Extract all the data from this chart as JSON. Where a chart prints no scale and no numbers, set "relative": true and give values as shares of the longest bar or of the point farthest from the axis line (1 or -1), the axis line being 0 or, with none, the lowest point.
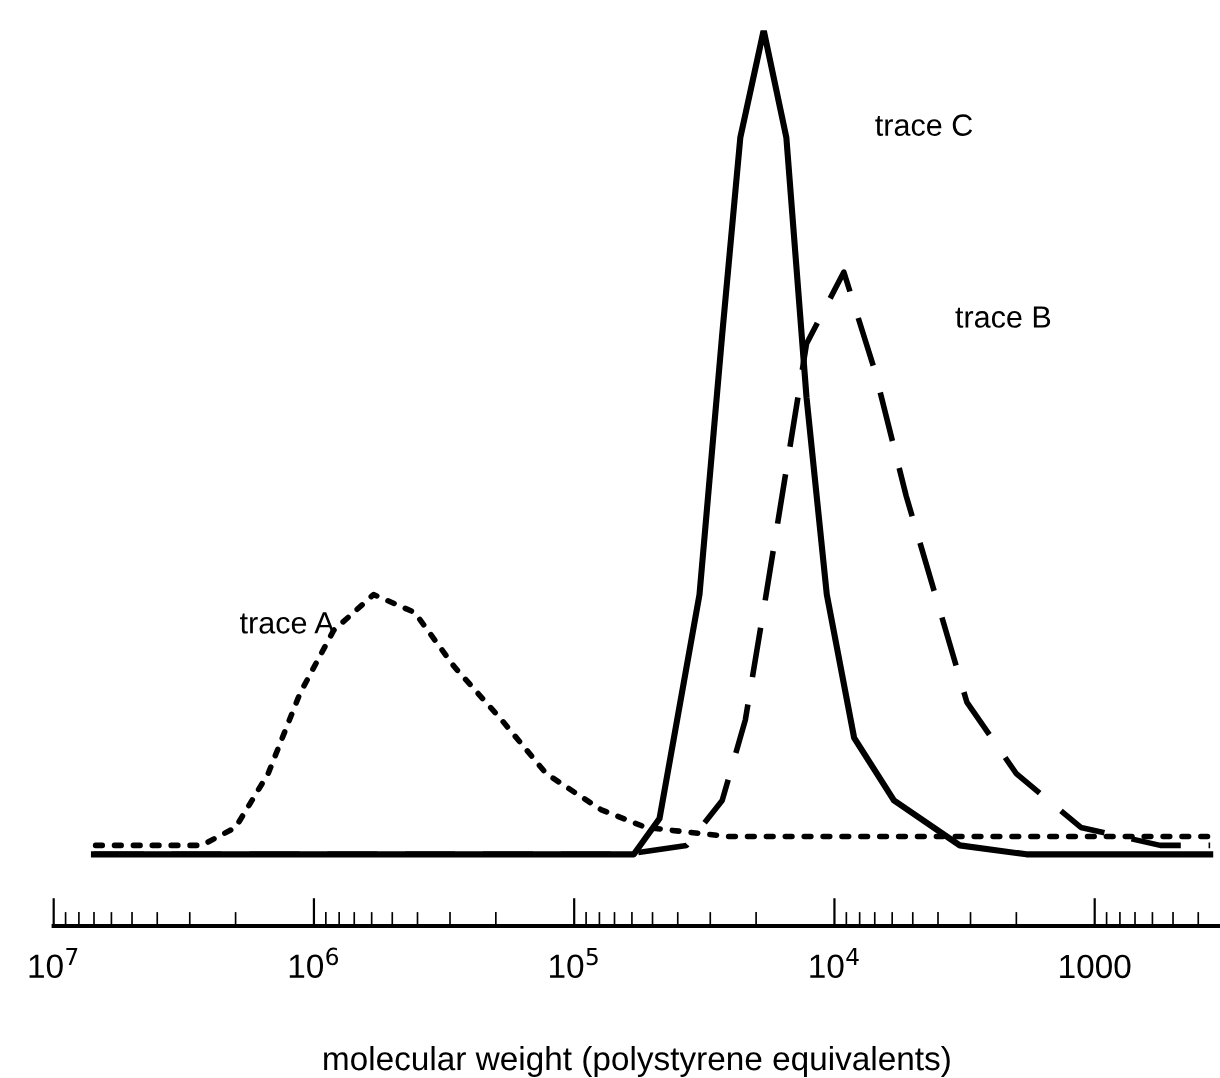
{
  "chart_data": {
    "type": "line",
    "xlabel": "molecular weight (polystyrene equivalents)",
    "log": "x",
    "relative": true,
    "xlim": [
      10000000,
      330
    ],
    "xticks": [
      {
        "value": 10000000,
        "label": "10$^{7}$"
      },
      {
        "value": 1000000,
        "label": "10$^{6}$"
      },
      {
        "value": 100000,
        "label": "10$^{5}$"
      },
      {
        "value": 10000,
        "label": "10$^{4}$"
      },
      1000
    ],
    "tick_labels": "x",
    "grid": false,
    "legend": false,
    "marker": "none",
    "series": [
      {
        "name": "trace A",
        "color": "#000000",
        "line_style": "dotted",
        "x": [
          6900000,
          2700000,
          2000000,
          1500000,
          1130000,
          840000,
          590000,
          410000,
          290000,
          190000,
          128000,
          79000,
          53000,
          26000,
          10000,
          1000,
          360
        ],
        "values": [
          0.09,
          0.09,
          0.11,
          0.17,
          0.26,
          0.33,
          0.37,
          0.35,
          0.29,
          0.23,
          0.17,
          0.13,
          0.11,
          0.1,
          0.1,
          0.1,
          0.1
        ]
      },
      {
        "name": "trace B",
        "color": "#000000",
        "line_style": "dashed",
        "x": [
          7000000,
          63000,
          37000,
          27000,
          22000,
          18300,
          15300,
          12800,
          9200,
          7000,
          5300,
          4100,
          3100,
          2000,
          1130,
          560,
          360
        ],
        "values": [
          0.08,
          0.08,
          0.09,
          0.14,
          0.23,
          0.37,
          0.51,
          0.65,
          0.73,
          0.62,
          0.48,
          0.37,
          0.25,
          0.17,
          0.11,
          0.09,
          0.09
        ]
      },
      {
        "name": "trace C",
        "color": "#000000",
        "line_style": "solid",
        "x": [
          7000000,
          59000,
          47000,
          33000,
          27000,
          23000,
          18700,
          15300,
          12800,
          10700,
          8400,
          5900,
          3300,
          1830,
          360
        ],
        "values": [
          0.08,
          0.08,
          0.12,
          0.37,
          0.66,
          0.88,
          1.0,
          0.88,
          0.59,
          0.37,
          0.21,
          0.14,
          0.09,
          0.08,
          0.08
        ]
      }
    ]
  }
}
